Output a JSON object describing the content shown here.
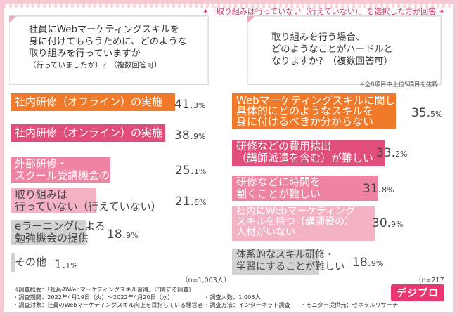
{
  "banner": "✦「取り組みは行っていない（行えていない）」を選択した方が回答 ✦",
  "q1": {
    "line1": "社員にWebマーケティングスキルを",
    "line2": "身に付けてもらうために、どのような",
    "line3": "取り組みを行っていますか",
    "line4": "（行っていましたか）？（複数回答可）"
  },
  "q2": {
    "line1": "取り組みを行う場合、",
    "line2": "どのようなことがハードルと",
    "line3": "なりますか？（複数回答可）"
  },
  "note": "※全8項目中上位5項目を抜粋",
  "colors": {
    "c1": "#f0792a",
    "c2": "#e04e79",
    "c3": "#ee84a2",
    "c4": "#f4b3c4",
    "c5": "#d2d2d2"
  },
  "chart_data": [
    {
      "type": "bar",
      "n_label": "（n=1,003人）",
      "categories": [
        "社内研修（オフライン）の実施",
        "社内研修（オンライン）の実施",
        "外部研修・スクール受講機会の提供",
        "取り組みは行っていない（行えていない）",
        "eラーニングによる勉強機会の提供",
        "その他"
      ],
      "labels": [
        [
          "社内研修（オフライン）の実施"
        ],
        [
          "社内研修（オンライン）の実施"
        ],
        [
          "外部研修・",
          "スクール受講機会の提供"
        ],
        [
          "取り組みは",
          "行っていない（行えていない）"
        ],
        [
          "eラーニングによる",
          "勉強機会の提供"
        ],
        [
          "その他"
        ]
      ],
      "values": [
        41.3,
        38.9,
        25.1,
        21.6,
        18.9,
        1.1
      ],
      "value_int": [
        "41.",
        "38.",
        "25.",
        "21.",
        "18.",
        "1."
      ],
      "value_dec": [
        "3%",
        "9%",
        "1%",
        "6%",
        "9%",
        "1%"
      ],
      "ylim": [
        0,
        45
      ]
    },
    {
      "type": "bar",
      "n_label": "（n=217人）",
      "categories": [
        "Webマーケティングスキルに関して具体的にどのようなスキルを身に付けるべきか分からない",
        "研修などの費用捻出（講師派遣を含む）が難しい",
        "研修などに時間を割くことが難しい",
        "社内にWebマーケティングスキルを持つ（講師役の）人材がいない",
        "体系的なスキル研修・学習にすることが難しい"
      ],
      "labels": [
        [
          "Webマーケティングスキルに関して",
          "具体的にどのようなスキルを",
          "身に付けるべきか分からない"
        ],
        [
          "研修などの費用捻出",
          "（講師派遣を含む）が難しい"
        ],
        [
          "研修などに時間を",
          "割くことが難しい"
        ],
        [
          "社内にWebマーケティング",
          "スキルを持つ（講師役の）",
          "人材がいない"
        ],
        [
          "体系的なスキル研修・",
          "学習にすることが難しい"
        ]
      ],
      "values": [
        35.5,
        33.2,
        31.8,
        30.9,
        18.9
      ],
      "value_int": [
        "35.",
        "33.",
        "31.",
        "30.",
        "18."
      ],
      "value_dec": [
        "5%",
        "2%",
        "8%",
        "9%",
        "9%"
      ],
      "ylim": [
        0,
        45
      ]
    }
  ],
  "footer": {
    "title": "《調査概要：「社員のWebマーケティングスキル習得」に関する調査》",
    "period": "・調査期間：2022年4月19日（火）〜2022年4月20日（水）",
    "people": "・調査人数：1,003人",
    "target": "・調査対象：社員のWebマーケティングスキル向上を目指している経営者",
    "method": "・調査方法：インターネット調査",
    "provider": "・モニター提供元：ゼネラルリサーチ"
  },
  "logo": "デジプロ"
}
